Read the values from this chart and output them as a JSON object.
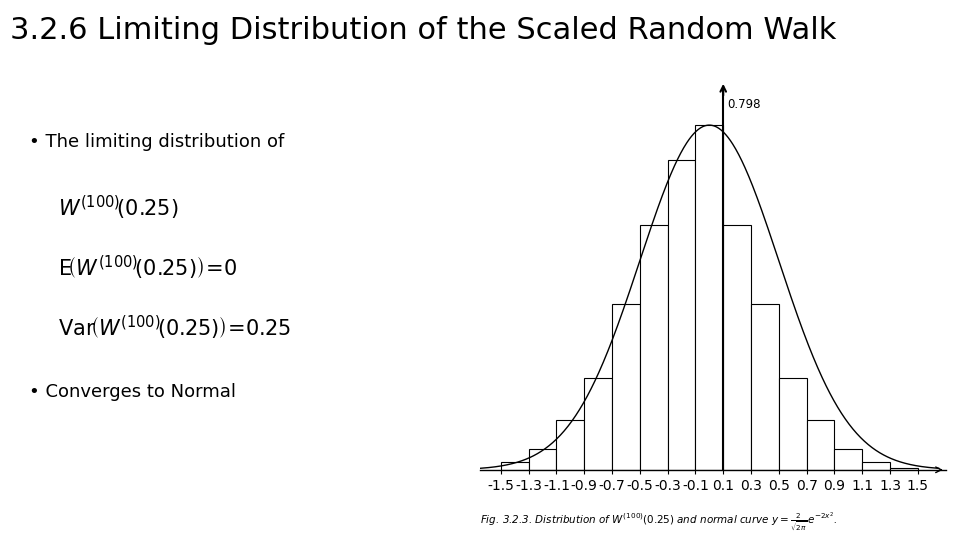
{
  "title": "3.2.6 Limiting Distribution of the Scaled Random Walk",
  "title_fontsize": 22,
  "background_color": "#ffffff",
  "text_color": "#000000",
  "bullet1": "The limiting distribution of",
  "math1": "$W^{(100)}\\!(0.25)$",
  "math2": "$\\mathrm{E}\\!\\left(W^{(100)}\\!(0.25)\\right)\\!=\\!0$",
  "math3": "$\\mathrm{Var}\\!\\left(W^{(100)}\\!(0.25)\\right)\\!=\\!0.25$",
  "bullet2": "Converges to Normal",
  "fig_caption": "Fig. 3.2.3. Distribution of $W^{(100)}(0.25)$ and normal curve $y = \\frac{2}{\\sqrt{2\\pi}}e^{-2x^2}$.",
  "hist_peak_label": "0.798",
  "bar_centers": [
    -1.4,
    -1.2,
    -1.0,
    -0.8,
    -0.6,
    -0.4,
    -0.2,
    0.0,
    0.2,
    0.4,
    0.6,
    0.8,
    1.0,
    1.2,
    1.4
  ],
  "bar_heights": [
    0.018,
    0.048,
    0.116,
    0.213,
    0.383,
    0.567,
    0.718,
    0.798,
    0.567,
    0.383,
    0.213,
    0.116,
    0.048,
    0.018,
    0.005
  ],
  "bar_width": 0.2,
  "xlim": [
    -1.65,
    1.7
  ],
  "ylim": [
    0.0,
    0.9
  ],
  "xtick_labels": [
    "-1.5",
    "-1.3",
    "-1.1",
    "-0.9",
    "-0.7",
    "-0.5",
    "-0.3",
    "-0.1",
    "0.1",
    "0.3",
    "0.5",
    "0.7",
    "0.9",
    "1.1",
    "1.3",
    "1.5"
  ],
  "xtick_positions": [
    -1.5,
    -1.3,
    -1.1,
    -0.9,
    -0.7,
    -0.5,
    -0.3,
    -0.1,
    0.1,
    0.3,
    0.5,
    0.7,
    0.9,
    1.1,
    1.3,
    1.5
  ],
  "bar_color": "#ffffff",
  "bar_edgecolor": "#000000",
  "curve_color": "#000000",
  "vline_x": 0.1,
  "vline_color": "#000000"
}
